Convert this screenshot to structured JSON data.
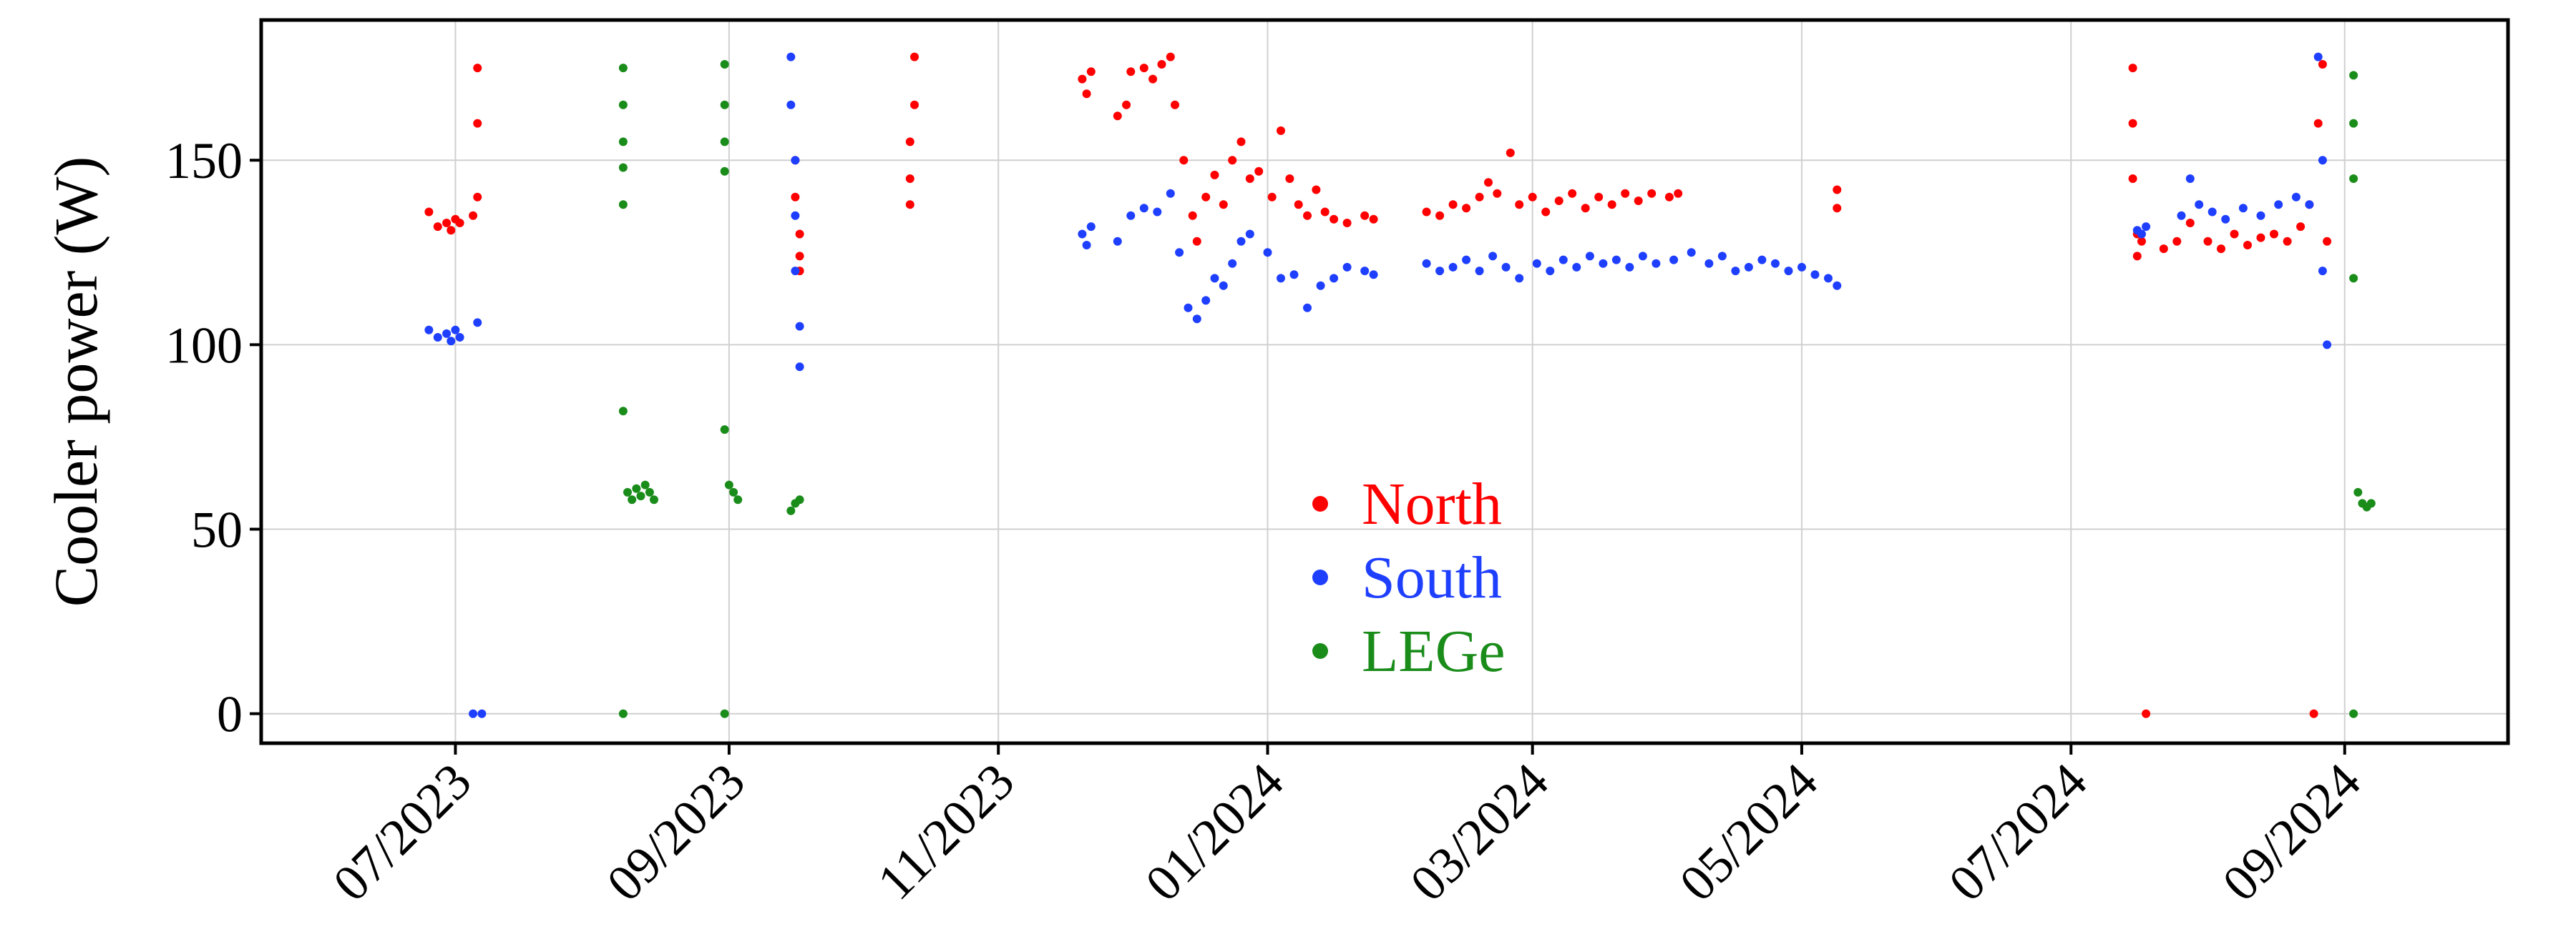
{
  "chart_data": {
    "type": "scatter",
    "ylabel": "Cooler power (W)",
    "xlabel": "",
    "title": "",
    "x_axis": "date",
    "xlim": [
      "2023-05-18",
      "2024-10-08"
    ],
    "ylim": [
      -8,
      188
    ],
    "x_ticks": [
      {
        "date": "2023-07-01",
        "label": "07/2023"
      },
      {
        "date": "2023-09-01",
        "label": "09/2023"
      },
      {
        "date": "2023-11-01",
        "label": "11/2023"
      },
      {
        "date": "2024-01-01",
        "label": "01/2024"
      },
      {
        "date": "2024-03-01",
        "label": "03/2024"
      },
      {
        "date": "2024-05-01",
        "label": "05/2024"
      },
      {
        "date": "2024-07-01",
        "label": "07/2024"
      },
      {
        "date": "2024-09-01",
        "label": "09/2024"
      }
    ],
    "y_ticks": [
      {
        "value": 0,
        "label": "0"
      },
      {
        "value": 50,
        "label": "50"
      },
      {
        "value": 100,
        "label": "100"
      },
      {
        "value": 150,
        "label": "150"
      }
    ],
    "grid": true,
    "legend_position": "center-bottom",
    "series": [
      {
        "name": "North",
        "color": "#ff0000",
        "points": [
          [
            "2023-06-25",
            136
          ],
          [
            "2023-06-27",
            132
          ],
          [
            "2023-06-29",
            133
          ],
          [
            "2023-06-30",
            131
          ],
          [
            "2023-07-01",
            134
          ],
          [
            "2023-07-02",
            133
          ],
          [
            "2023-07-05",
            135
          ],
          [
            "2023-07-06",
            140
          ],
          [
            "2023-07-06",
            160
          ],
          [
            "2023-07-06",
            175
          ],
          [
            "2023-09-16",
            150
          ],
          [
            "2023-09-16",
            140
          ],
          [
            "2023-09-17",
            130
          ],
          [
            "2023-09-17",
            124
          ],
          [
            "2023-09-17",
            120
          ],
          [
            "2023-10-12",
            138
          ],
          [
            "2023-10-12",
            145
          ],
          [
            "2023-10-12",
            155
          ],
          [
            "2023-10-13",
            165
          ],
          [
            "2023-10-13",
            178
          ],
          [
            "2023-11-20",
            172
          ],
          [
            "2023-11-21",
            168
          ],
          [
            "2023-11-22",
            174
          ],
          [
            "2023-11-28",
            162
          ],
          [
            "2023-11-30",
            165
          ],
          [
            "2023-12-01",
            174
          ],
          [
            "2023-12-04",
            175
          ],
          [
            "2023-12-06",
            172
          ],
          [
            "2023-12-08",
            176
          ],
          [
            "2023-12-10",
            178
          ],
          [
            "2023-12-11",
            165
          ],
          [
            "2023-12-13",
            150
          ],
          [
            "2023-12-15",
            135
          ],
          [
            "2023-12-16",
            128
          ],
          [
            "2023-12-18",
            140
          ],
          [
            "2023-12-20",
            146
          ],
          [
            "2023-12-22",
            138
          ],
          [
            "2023-12-24",
            150
          ],
          [
            "2023-12-26",
            155
          ],
          [
            "2023-12-28",
            145
          ],
          [
            "2023-12-30",
            147
          ],
          [
            "2024-01-02",
            140
          ],
          [
            "2024-01-04",
            158
          ],
          [
            "2024-01-06",
            145
          ],
          [
            "2024-01-08",
            138
          ],
          [
            "2024-01-10",
            135
          ],
          [
            "2024-01-12",
            142
          ],
          [
            "2024-01-14",
            136
          ],
          [
            "2024-01-16",
            134
          ],
          [
            "2024-01-19",
            133
          ],
          [
            "2024-01-23",
            135
          ],
          [
            "2024-01-25",
            134
          ],
          [
            "2024-02-06",
            136
          ],
          [
            "2024-02-09",
            135
          ],
          [
            "2024-02-12",
            138
          ],
          [
            "2024-02-15",
            137
          ],
          [
            "2024-02-18",
            140
          ],
          [
            "2024-02-20",
            144
          ],
          [
            "2024-02-22",
            141
          ],
          [
            "2024-02-25",
            152
          ],
          [
            "2024-02-27",
            138
          ],
          [
            "2024-03-01",
            140
          ],
          [
            "2024-03-04",
            136
          ],
          [
            "2024-03-07",
            139
          ],
          [
            "2024-03-10",
            141
          ],
          [
            "2024-03-13",
            137
          ],
          [
            "2024-03-16",
            140
          ],
          [
            "2024-03-19",
            138
          ],
          [
            "2024-03-22",
            141
          ],
          [
            "2024-03-25",
            139
          ],
          [
            "2024-03-28",
            141
          ],
          [
            "2024-04-01",
            140
          ],
          [
            "2024-04-03",
            141
          ],
          [
            "2024-05-09",
            137
          ],
          [
            "2024-05-09",
            142
          ],
          [
            "2024-07-15",
            175
          ],
          [
            "2024-07-15",
            160
          ],
          [
            "2024-07-15",
            145
          ],
          [
            "2024-07-16",
            130
          ],
          [
            "2024-07-16",
            124
          ],
          [
            "2024-07-17",
            128
          ],
          [
            "2024-07-18",
            0
          ],
          [
            "2024-07-22",
            126
          ],
          [
            "2024-07-25",
            128
          ],
          [
            "2024-07-28",
            133
          ],
          [
            "2024-08-01",
            128
          ],
          [
            "2024-08-04",
            126
          ],
          [
            "2024-08-07",
            130
          ],
          [
            "2024-08-10",
            127
          ],
          [
            "2024-08-13",
            129
          ],
          [
            "2024-08-16",
            130
          ],
          [
            "2024-08-19",
            128
          ],
          [
            "2024-08-22",
            132
          ],
          [
            "2024-08-24",
            138
          ],
          [
            "2024-08-25",
            0
          ],
          [
            "2024-08-26",
            160
          ],
          [
            "2024-08-27",
            176
          ],
          [
            "2024-08-28",
            128
          ]
        ]
      },
      {
        "name": "South",
        "color": "#1f3fff",
        "points": [
          [
            "2023-06-25",
            104
          ],
          [
            "2023-06-27",
            102
          ],
          [
            "2023-06-29",
            103
          ],
          [
            "2023-06-30",
            101
          ],
          [
            "2023-07-01",
            104
          ],
          [
            "2023-07-02",
            102
          ],
          [
            "2023-07-06",
            106
          ],
          [
            "2023-07-05",
            0
          ],
          [
            "2023-07-07",
            0
          ],
          [
            "2023-09-15",
            178
          ],
          [
            "2023-09-15",
            165
          ],
          [
            "2023-09-16",
            150
          ],
          [
            "2023-09-16",
            135
          ],
          [
            "2023-09-16",
            120
          ],
          [
            "2023-09-17",
            105
          ],
          [
            "2023-09-17",
            94
          ],
          [
            "2023-11-20",
            130
          ],
          [
            "2023-11-21",
            127
          ],
          [
            "2023-11-22",
            132
          ],
          [
            "2023-11-28",
            128
          ],
          [
            "2023-12-01",
            135
          ],
          [
            "2023-12-04",
            137
          ],
          [
            "2023-12-07",
            136
          ],
          [
            "2023-12-10",
            141
          ],
          [
            "2023-12-12",
            125
          ],
          [
            "2023-12-14",
            110
          ],
          [
            "2023-12-16",
            107
          ],
          [
            "2023-12-18",
            112
          ],
          [
            "2023-12-20",
            118
          ],
          [
            "2023-12-22",
            116
          ],
          [
            "2023-12-24",
            122
          ],
          [
            "2023-12-26",
            128
          ],
          [
            "2023-12-28",
            130
          ],
          [
            "2024-01-01",
            125
          ],
          [
            "2024-01-04",
            118
          ],
          [
            "2024-01-07",
            119
          ],
          [
            "2024-01-10",
            110
          ],
          [
            "2024-01-13",
            116
          ],
          [
            "2024-01-16",
            118
          ],
          [
            "2024-01-19",
            121
          ],
          [
            "2024-01-23",
            120
          ],
          [
            "2024-01-25",
            119
          ],
          [
            "2024-02-06",
            122
          ],
          [
            "2024-02-09",
            120
          ],
          [
            "2024-02-12",
            121
          ],
          [
            "2024-02-15",
            123
          ],
          [
            "2024-02-18",
            120
          ],
          [
            "2024-02-21",
            124
          ],
          [
            "2024-02-24",
            121
          ],
          [
            "2024-02-27",
            118
          ],
          [
            "2024-03-02",
            122
          ],
          [
            "2024-03-05",
            120
          ],
          [
            "2024-03-08",
            123
          ],
          [
            "2024-03-11",
            121
          ],
          [
            "2024-03-14",
            124
          ],
          [
            "2024-03-17",
            122
          ],
          [
            "2024-03-20",
            123
          ],
          [
            "2024-03-23",
            121
          ],
          [
            "2024-03-26",
            124
          ],
          [
            "2024-03-29",
            122
          ],
          [
            "2024-04-02",
            123
          ],
          [
            "2024-04-06",
            125
          ],
          [
            "2024-04-10",
            122
          ],
          [
            "2024-04-13",
            124
          ],
          [
            "2024-04-16",
            120
          ],
          [
            "2024-04-19",
            121
          ],
          [
            "2024-04-22",
            123
          ],
          [
            "2024-04-25",
            122
          ],
          [
            "2024-04-28",
            120
          ],
          [
            "2024-05-01",
            121
          ],
          [
            "2024-05-04",
            119
          ],
          [
            "2024-05-07",
            118
          ],
          [
            "2024-05-09",
            116
          ],
          [
            "2024-07-16",
            131
          ],
          [
            "2024-07-17",
            130
          ],
          [
            "2024-07-18",
            132
          ],
          [
            "2024-07-26",
            135
          ],
          [
            "2024-07-28",
            145
          ],
          [
            "2024-07-30",
            138
          ],
          [
            "2024-08-02",
            136
          ],
          [
            "2024-08-05",
            134
          ],
          [
            "2024-08-09",
            137
          ],
          [
            "2024-08-13",
            135
          ],
          [
            "2024-08-17",
            138
          ],
          [
            "2024-08-21",
            140
          ],
          [
            "2024-08-24",
            138
          ],
          [
            "2024-08-26",
            178
          ],
          [
            "2024-08-27",
            150
          ],
          [
            "2024-08-27",
            120
          ],
          [
            "2024-08-28",
            100
          ]
        ]
      },
      {
        "name": "LEGe",
        "color": "#1a8c1a",
        "points": [
          [
            "2023-08-08",
            175
          ],
          [
            "2023-08-08",
            165
          ],
          [
            "2023-08-08",
            155
          ],
          [
            "2023-08-08",
            148
          ],
          [
            "2023-08-08",
            138
          ],
          [
            "2023-08-08",
            82
          ],
          [
            "2023-08-08",
            0
          ],
          [
            "2023-08-09",
            60
          ],
          [
            "2023-08-10",
            58
          ],
          [
            "2023-08-11",
            61
          ],
          [
            "2023-08-12",
            59
          ],
          [
            "2023-08-13",
            62
          ],
          [
            "2023-08-14",
            60
          ],
          [
            "2023-08-15",
            58
          ],
          [
            "2023-08-31",
            176
          ],
          [
            "2023-08-31",
            165
          ],
          [
            "2023-08-31",
            155
          ],
          [
            "2023-08-31",
            147
          ],
          [
            "2023-08-31",
            77
          ],
          [
            "2023-08-31",
            0
          ],
          [
            "2023-09-01",
            62
          ],
          [
            "2023-09-02",
            60
          ],
          [
            "2023-09-03",
            58
          ],
          [
            "2023-09-15",
            55
          ],
          [
            "2023-09-16",
            57
          ],
          [
            "2023-09-17",
            58
          ],
          [
            "2024-09-03",
            173
          ],
          [
            "2024-09-03",
            160
          ],
          [
            "2024-09-03",
            145
          ],
          [
            "2024-09-03",
            118
          ],
          [
            "2024-09-03",
            0
          ],
          [
            "2024-09-04",
            60
          ],
          [
            "2024-09-05",
            57
          ],
          [
            "2024-09-06",
            56
          ],
          [
            "2024-09-07",
            57
          ]
        ]
      }
    ]
  }
}
